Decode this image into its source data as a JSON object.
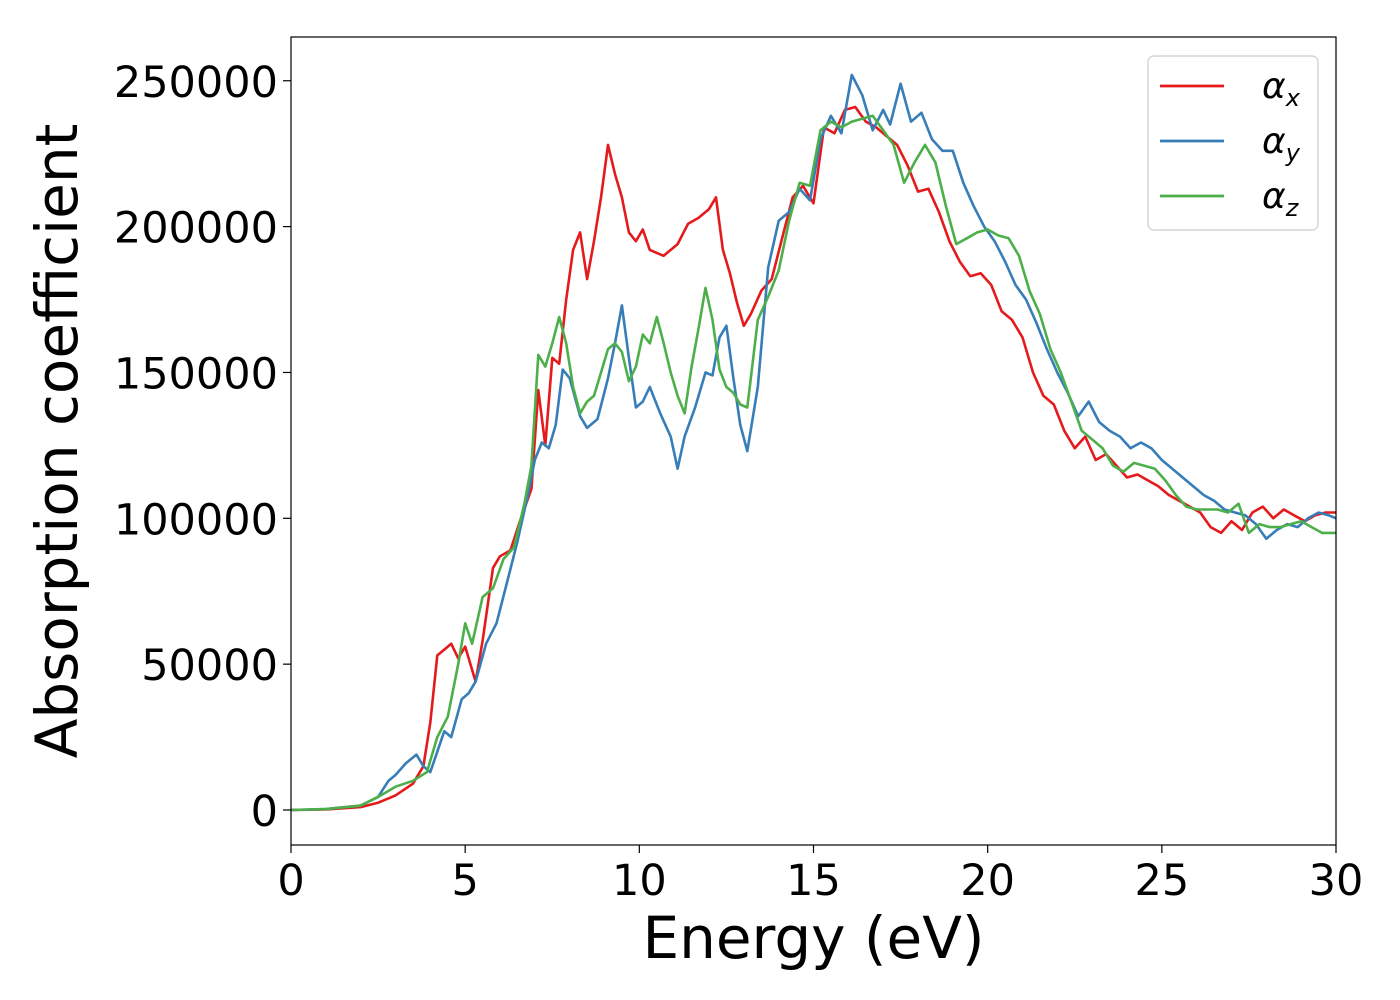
{
  "chart_data": {
    "type": "line",
    "title": "",
    "xlabel": "Energy (eV)",
    "ylabel": "Absorption coefficient",
    "xlim": [
      0,
      30
    ],
    "ylim": [
      -12000,
      265000
    ],
    "xticks": [
      "0",
      "5",
      "10",
      "15",
      "20",
      "25",
      "30"
    ],
    "yticks": [
      "0",
      "50000",
      "100000",
      "150000",
      "200000",
      "250000"
    ],
    "xtick_values": [
      0,
      5,
      10,
      15,
      20,
      25,
      30
    ],
    "ytick_values": [
      0,
      50000,
      100000,
      150000,
      200000,
      250000
    ],
    "grid": false,
    "legend_position": "top-right",
    "series": [
      {
        "name": "α_x",
        "label_main": "α",
        "label_sub": "x",
        "color": "#e41a1c",
        "x": [
          0,
          1,
          2,
          2.5,
          3,
          3.5,
          3.8,
          4.0,
          4.2,
          4.4,
          4.6,
          4.8,
          5.0,
          5.3,
          5.5,
          5.8,
          6.0,
          6.3,
          6.6,
          6.9,
          7.1,
          7.3,
          7.5,
          7.7,
          7.9,
          8.1,
          8.3,
          8.5,
          8.7,
          8.9,
          9.1,
          9.3,
          9.5,
          9.7,
          9.9,
          10.1,
          10.3,
          10.5,
          10.7,
          10.9,
          11.1,
          11.4,
          11.7,
          12.0,
          12.2,
          12.4,
          12.6,
          12.8,
          13.0,
          13.2,
          13.5,
          13.8,
          14.1,
          14.4,
          14.7,
          15.0,
          15.3,
          15.6,
          15.9,
          16.2,
          16.5,
          16.8,
          17.1,
          17.4,
          17.7,
          18.0,
          18.3,
          18.6,
          18.9,
          19.2,
          19.5,
          19.8,
          20.1,
          20.4,
          20.7,
          21.0,
          21.3,
          21.6,
          21.9,
          22.2,
          22.5,
          22.8,
          23.1,
          23.4,
          23.7,
          24.0,
          24.3,
          24.6,
          24.9,
          25.2,
          25.5,
          25.8,
          26.1,
          26.4,
          26.7,
          27.0,
          27.3,
          27.6,
          27.9,
          28.2,
          28.5,
          28.8,
          29.1,
          29.4,
          29.7,
          30.0
        ],
        "y": [
          0,
          200,
          1000,
          2500,
          5000,
          9000,
          15000,
          30000,
          53000,
          55000,
          57000,
          52000,
          56000,
          44000,
          58000,
          83000,
          87000,
          89000,
          100000,
          110000,
          144000,
          125000,
          155000,
          153000,
          175000,
          192000,
          198000,
          182000,
          195000,
          210000,
          228000,
          218000,
          210000,
          198000,
          195000,
          199000,
          192000,
          191000,
          190000,
          192000,
          194000,
          201000,
          203000,
          206000,
          210000,
          192000,
          184000,
          174000,
          166000,
          170000,
          178000,
          182000,
          196000,
          210000,
          214000,
          208000,
          234000,
          232000,
          240000,
          241000,
          236000,
          234000,
          231000,
          228000,
          221000,
          212000,
          213000,
          205000,
          195000,
          188000,
          183000,
          184000,
          180000,
          171000,
          168000,
          162000,
          150000,
          142000,
          139000,
          130000,
          124000,
          128000,
          120000,
          122000,
          118000,
          114000,
          115000,
          113000,
          111000,
          108000,
          106000,
          104000,
          102000,
          97000,
          95000,
          99000,
          96000,
          102000,
          104000,
          100000,
          103000,
          101000,
          99000,
          101000,
          102000,
          102000
        ]
      },
      {
        "name": "α_y",
        "label_main": "α",
        "label_sub": "y",
        "color": "#377eb8",
        "x": [
          0,
          1,
          2,
          2.5,
          2.8,
          3.0,
          3.3,
          3.6,
          3.8,
          4.0,
          4.2,
          4.4,
          4.6,
          4.9,
          5.1,
          5.3,
          5.6,
          5.9,
          6.2,
          6.5,
          6.8,
          7.0,
          7.2,
          7.4,
          7.6,
          7.8,
          8.0,
          8.3,
          8.5,
          8.8,
          9.1,
          9.3,
          9.5,
          9.7,
          9.9,
          10.1,
          10.3,
          10.6,
          10.9,
          11.1,
          11.3,
          11.6,
          11.9,
          12.1,
          12.3,
          12.5,
          12.7,
          12.9,
          13.1,
          13.4,
          13.7,
          14.0,
          14.3,
          14.6,
          14.9,
          15.2,
          15.5,
          15.8,
          16.1,
          16.4,
          16.7,
          17.0,
          17.2,
          17.5,
          17.8,
          18.1,
          18.4,
          18.7,
          19.0,
          19.3,
          19.6,
          19.9,
          20.2,
          20.5,
          20.8,
          21.1,
          21.4,
          21.7,
          22.0,
          22.3,
          22.6,
          22.9,
          23.2,
          23.5,
          23.8,
          24.1,
          24.4,
          24.7,
          25.0,
          25.3,
          25.6,
          25.9,
          26.2,
          26.5,
          26.8,
          27.1,
          27.4,
          27.7,
          28.0,
          28.3,
          28.6,
          28.9,
          29.2,
          29.5,
          29.8,
          30.0
        ],
        "y": [
          0,
          300,
          1500,
          4500,
          10000,
          12000,
          16000,
          19000,
          15000,
          13000,
          20000,
          27000,
          25000,
          38000,
          40000,
          44000,
          57000,
          64000,
          78000,
          92000,
          108000,
          120000,
          126000,
          124000,
          132000,
          151000,
          148000,
          135000,
          131000,
          134000,
          148000,
          160000,
          173000,
          155000,
          138000,
          140000,
          145000,
          136000,
          128000,
          117000,
          128000,
          138000,
          150000,
          149000,
          162000,
          166000,
          148000,
          132000,
          123000,
          145000,
          186000,
          202000,
          205000,
          213000,
          209000,
          230000,
          238000,
          232000,
          252000,
          245000,
          233000,
          240000,
          235000,
          249000,
          236000,
          239000,
          230000,
          226000,
          226000,
          215000,
          207000,
          200000,
          195000,
          188000,
          180000,
          175000,
          167000,
          158000,
          150000,
          143000,
          135000,
          140000,
          133000,
          130000,
          128000,
          124000,
          126000,
          124000,
          120000,
          117000,
          114000,
          111000,
          108000,
          106000,
          103000,
          102000,
          101000,
          98000,
          93000,
          96000,
          98000,
          97000,
          100000,
          102000,
          101000,
          100000
        ]
      },
      {
        "name": "α_z",
        "label_main": "α",
        "label_sub": "z",
        "color": "#4daf4a",
        "x": [
          0,
          1,
          2,
          2.5,
          3.0,
          3.5,
          3.9,
          4.2,
          4.5,
          4.8,
          5.0,
          5.2,
          5.5,
          5.8,
          6.1,
          6.4,
          6.7,
          6.9,
          7.1,
          7.3,
          7.5,
          7.7,
          7.9,
          8.1,
          8.3,
          8.5,
          8.7,
          8.9,
          9.1,
          9.3,
          9.5,
          9.7,
          9.9,
          10.1,
          10.3,
          10.5,
          10.7,
          10.9,
          11.1,
          11.3,
          11.5,
          11.7,
          11.9,
          12.1,
          12.3,
          12.5,
          12.7,
          12.9,
          13.1,
          13.4,
          13.7,
          14.0,
          14.3,
          14.6,
          14.9,
          15.2,
          15.5,
          15.8,
          16.1,
          16.4,
          16.7,
          17.0,
          17.3,
          17.6,
          17.9,
          18.2,
          18.5,
          18.8,
          19.1,
          19.4,
          19.7,
          20.0,
          20.3,
          20.6,
          20.9,
          21.2,
          21.5,
          21.8,
          22.1,
          22.4,
          22.7,
          23.0,
          23.3,
          23.6,
          23.9,
          24.2,
          24.5,
          24.8,
          25.1,
          25.4,
          25.7,
          26.0,
          26.3,
          26.6,
          26.9,
          27.2,
          27.5,
          27.8,
          28.1,
          28.4,
          28.7,
          29.0,
          29.3,
          29.6,
          30.0
        ],
        "y": [
          0,
          300,
          1500,
          4500,
          8000,
          10000,
          13000,
          25000,
          32000,
          50000,
          64000,
          57000,
          73000,
          76000,
          86000,
          90000,
          105000,
          118000,
          156000,
          152000,
          160000,
          169000,
          160000,
          145000,
          136000,
          140000,
          142000,
          150000,
          158000,
          160000,
          157000,
          147000,
          152000,
          163000,
          160000,
          169000,
          160000,
          150000,
          142000,
          136000,
          152000,
          165000,
          179000,
          168000,
          151000,
          145000,
          143000,
          139000,
          138000,
          168000,
          176000,
          185000,
          202000,
          215000,
          214000,
          233000,
          236000,
          234000,
          236000,
          237000,
          238000,
          233000,
          228000,
          215000,
          222000,
          228000,
          222000,
          207000,
          194000,
          196000,
          198000,
          199000,
          197000,
          196000,
          190000,
          178000,
          170000,
          158000,
          150000,
          140000,
          130000,
          127000,
          124000,
          118000,
          116000,
          119000,
          118000,
          117000,
          113000,
          108000,
          104000,
          103000,
          103000,
          103000,
          102000,
          105000,
          95000,
          98000,
          97000,
          97000,
          98000,
          99000,
          97000,
          95000,
          95000
        ]
      }
    ]
  }
}
